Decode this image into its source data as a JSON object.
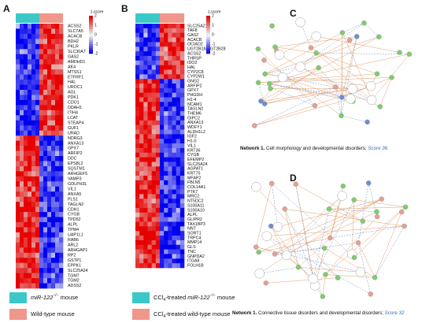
{
  "panels": [
    {
      "letter": "A",
      "colorbar_title": "z-score",
      "colorbar_ticks": [
        "2",
        "1",
        "0",
        "-1",
        "-2"
      ],
      "genes": [
        "ACSS2",
        "SLC7A5",
        "ACACB",
        "BDH2",
        "PKLR",
        "SLC30A7",
        "GAS2",
        "AMDHD1",
        "AK4",
        "MTSS1",
        "ETFRF1",
        "HAL",
        "UROC1",
        "AGL",
        "PDK1",
        "CDO1",
        "DDAH1",
        "ITIH4",
        "LCAT",
        "STEAP4",
        "GUF1",
        "URAD",
        "NDRG3",
        "ANXA13",
        "GPX7",
        "ARFIP2",
        "DDC",
        "EPS8L2",
        "SQSTM1",
        "ARHGEF5",
        "VAMP3",
        "GOLPH3L",
        "VIL1",
        "ANXA5",
        "PLS1",
        "TAGLN2",
        "CDH1",
        "CYGB",
        "TPD52",
        "ALPL",
        "TPM4",
        "UAP1L1",
        "RAB6",
        "ARL2",
        "ARHGAP1",
        "RP2",
        "GSTP1",
        "EPPK1",
        "SLC25A24",
        "TGM7",
        "TGM2",
        "ADSS2"
      ],
      "legend": [
        {
          "parts": [
            "miR-122",
            "−/−",
            " mouse"
          ]
        },
        {
          "parts": [
            "Wild-type mouse"
          ]
        }
      ]
    },
    {
      "letter": "B",
      "colorbar_title": "z-score",
      "colorbar_ticks": [
        "2",
        "1",
        "0",
        "-1",
        "-2"
      ],
      "genes": [
        "SLC25A21",
        "TAF8",
        "GAS2",
        "ACACB",
        "OCIAD2",
        "UGT2B18/UGT2B28",
        "ACSS2",
        "THRSP",
        "IDO2",
        "HAL",
        "CYP2C8",
        "CYP2W1",
        "GNG2",
        "ARFIP2",
        "GPX7",
        "PHGDH",
        "H1-4",
        "NCAM1",
        "TAGLN2",
        "THEM6",
        "GIPC2",
        "ANXA13",
        "WDFY1",
        "ALDH1L2",
        "IGF2",
        "H1-0",
        "VIL1",
        "KRT36",
        "CYGB",
        "EFEMP2",
        "SLC25A24",
        "AGPAT1",
        "KRT75",
        "MFAP2",
        "FBLN5",
        "COL14A1",
        "PTK7",
        "MRC2",
        "NT5DC2",
        "S100A11",
        "S100A10",
        "ALPL",
        "GLIPR2",
        "TAX1BP3",
        "NNT",
        "SORT1",
        "TRPC4",
        "MMP14",
        "GLS",
        "TNC",
        "GNPDA2",
        "ITGA8",
        "FOLH1B"
      ],
      "legend": [
        {
          "parts": [
            "CCl",
            "4",
            "-treated ",
            "miR-122",
            "−/−",
            " mouse"
          ]
        },
        {
          "parts": [
            "CCl",
            "4",
            "-treated wild-type mouse"
          ]
        }
      ]
    },
    {
      "letter": "C",
      "caption": [
        "Network 1.",
        " Cell morphology and developmental disorders; ",
        "Score 36."
      ]
    },
    {
      "letter": "D",
      "caption": [
        "Network 1.",
        " Connective tissue disorders and developmental disorders; ",
        "Score 32"
      ]
    }
  ]
}
